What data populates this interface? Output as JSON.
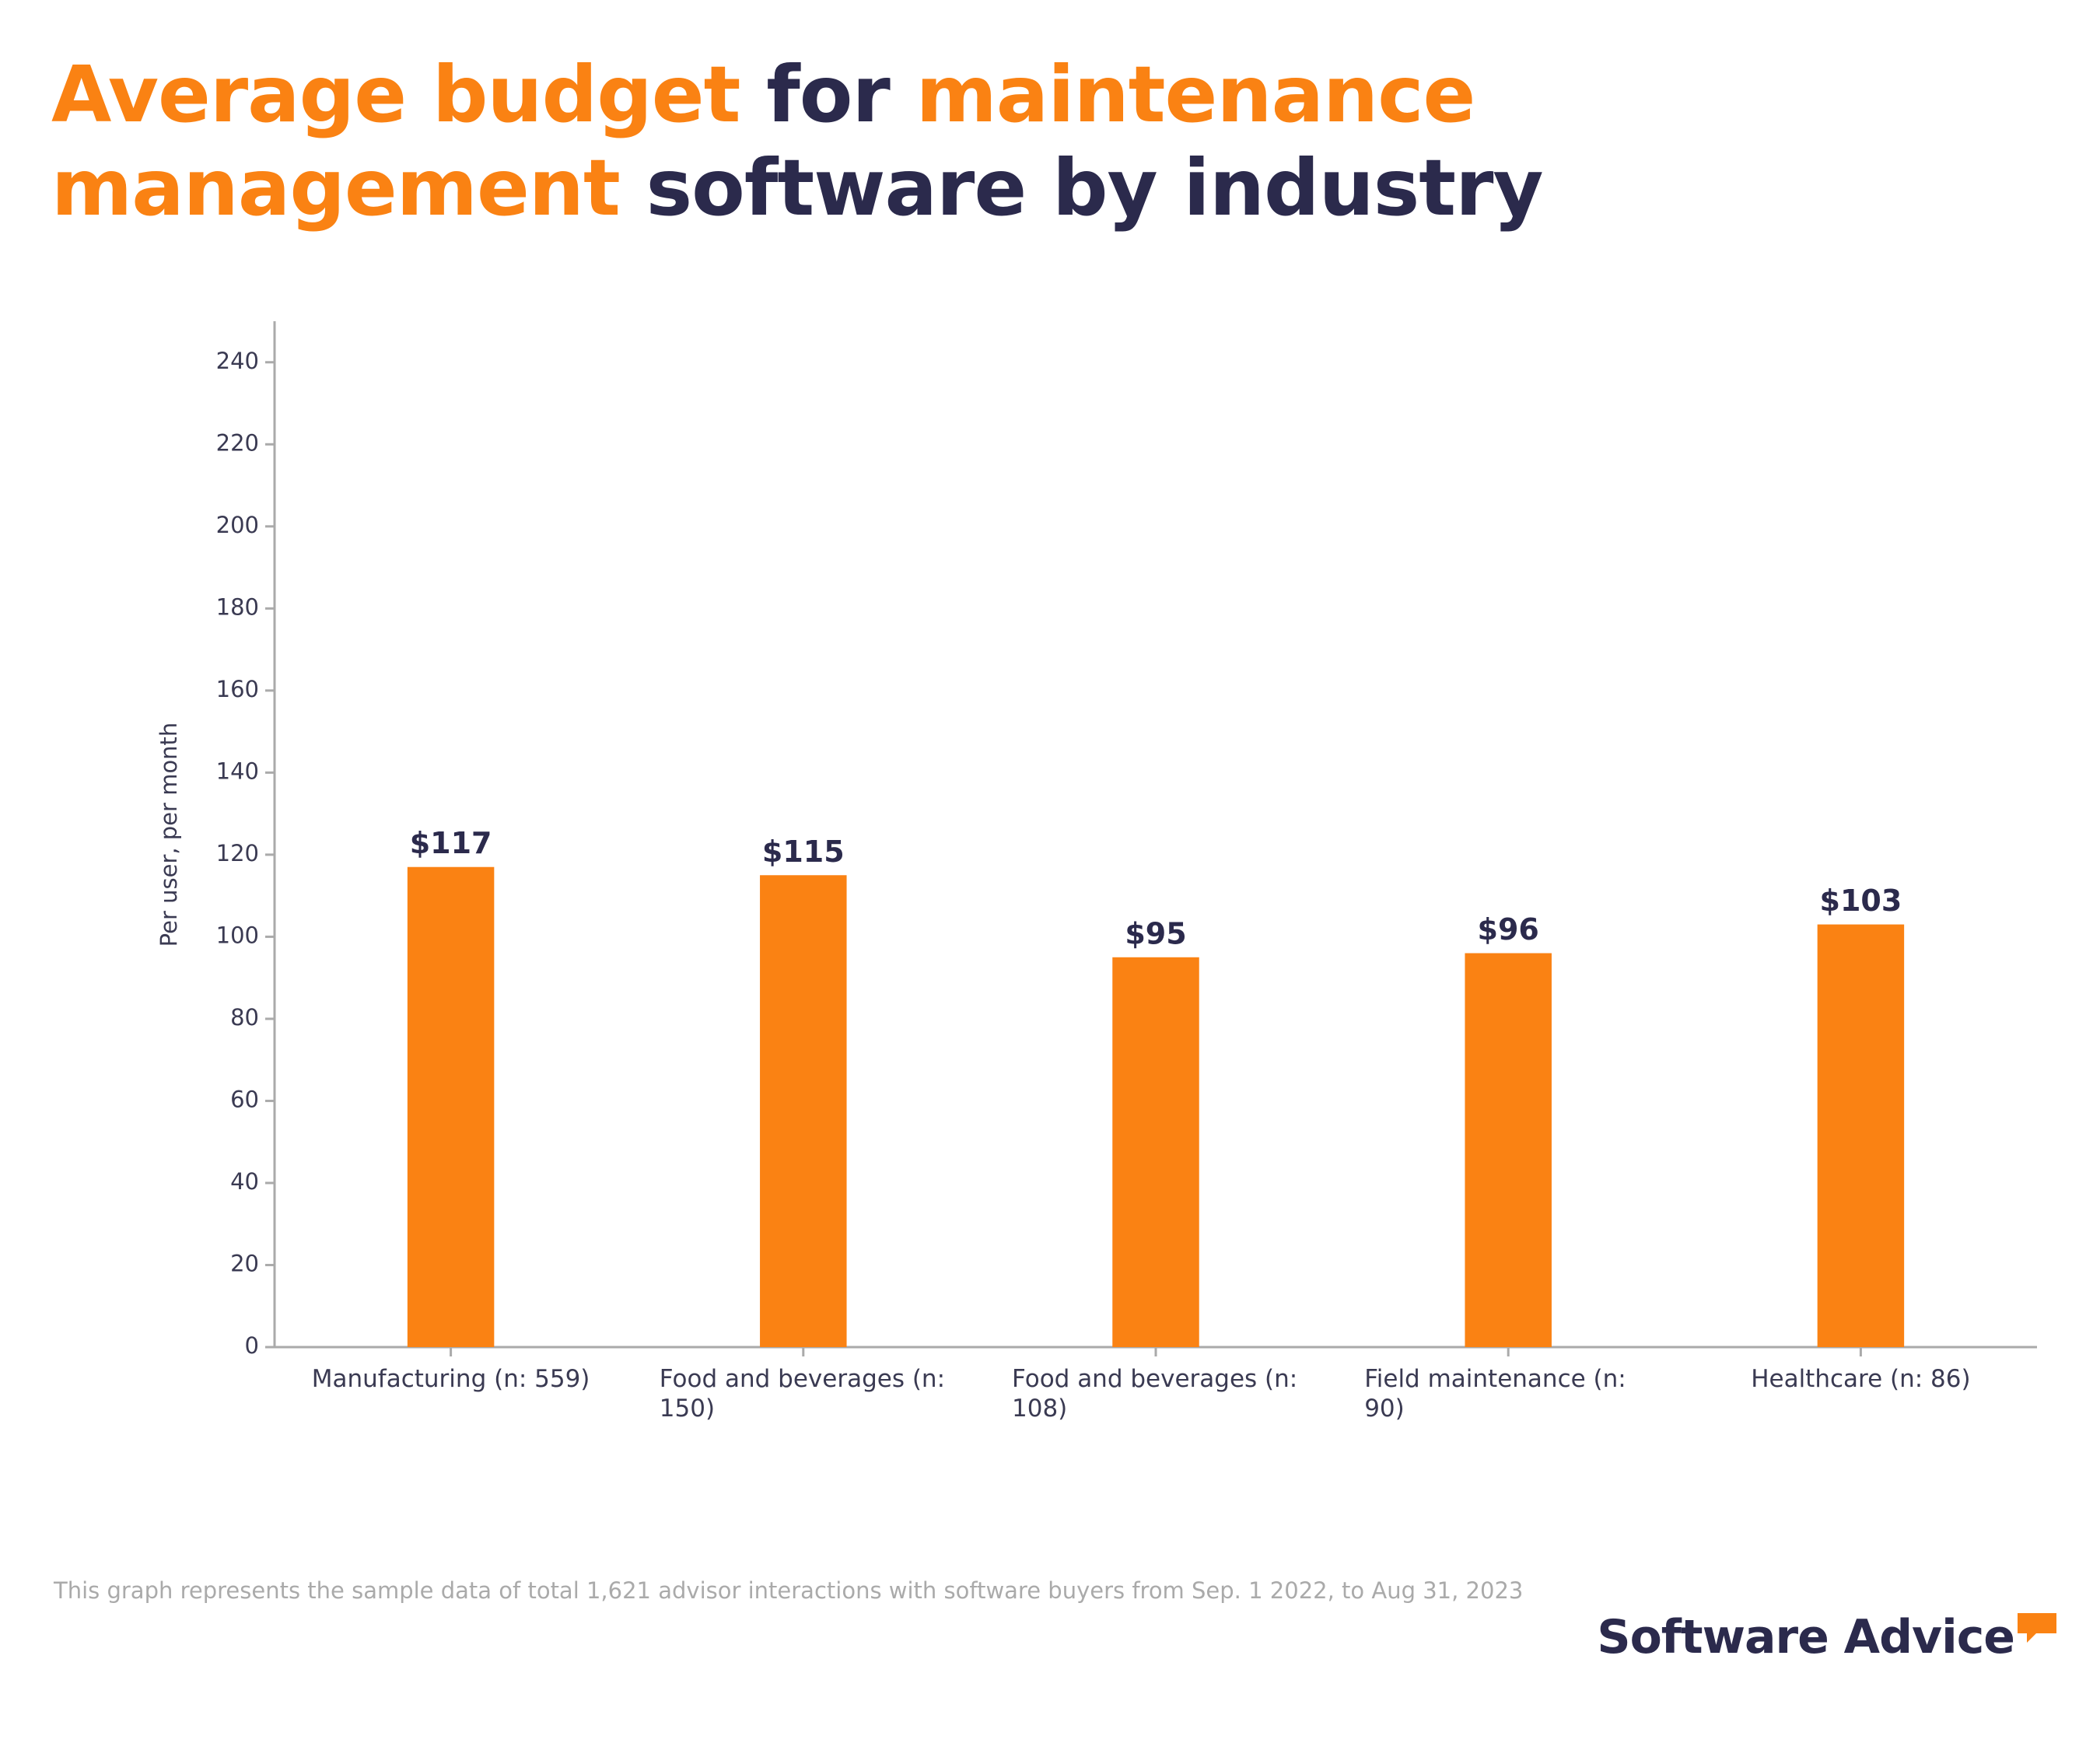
{
  "chart_data": {
    "type": "bar",
    "title_segments": [
      {
        "text": "Average budget",
        "color": "#fa8213"
      },
      {
        "text": "for",
        "color": "#2b2a4c"
      },
      {
        "text": "maintenance management",
        "color": "#fa8213"
      },
      {
        "text": "software by industry",
        "color": "#2b2a4c"
      }
    ],
    "y_label": "Per user, per month",
    "categories": [
      "Manufacturing (n: 559)",
      "Food and beverages (n: 150)",
      "Food and beverages (n: 108)",
      "Field maintenance (n: 90)",
      "Healthcare (n: 86)"
    ],
    "values": [
      117,
      115,
      95,
      96,
      103
    ],
    "value_labels": [
      "$117",
      "$115",
      "$95",
      "$96",
      "$103"
    ],
    "color": "#fa8213",
    "ylim": [
      0,
      250
    ],
    "yticks": [
      0,
      20,
      40,
      60,
      80,
      100,
      120,
      140,
      160,
      180,
      200,
      220,
      240
    ],
    "grid": false,
    "footnote": "This graph represents the sample data of total 1,621 advisor interactions with software buyers from Sep. 1 2022, to Aug 31, 2023",
    "logo": "Software Advice"
  }
}
